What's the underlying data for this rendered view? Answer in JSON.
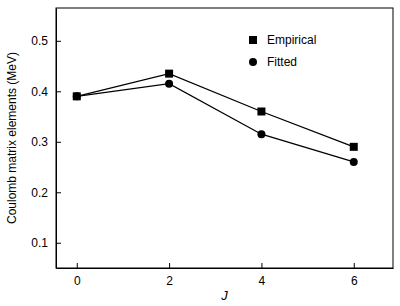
{
  "chart_data": {
    "type": "line",
    "x_label": "J",
    "y_label": "Coulomb matrix elements (MeV)",
    "x": [
      0,
      2,
      4,
      6
    ],
    "series": [
      {
        "name": "Empirical",
        "color": "#000000",
        "marker": "square",
        "values": [
          0.39,
          0.435,
          0.36,
          0.29
        ]
      },
      {
        "name": "Fitted",
        "color": "#000000",
        "marker": "circle",
        "values": [
          0.39,
          0.415,
          0.315,
          0.26
        ]
      }
    ],
    "xlim": [
      -0.45,
      6.85
    ],
    "xticks": [
      0,
      2,
      4,
      6
    ],
    "ylim": [
      0.05,
      0.565
    ],
    "yticks": [
      0.1,
      0.2,
      0.3,
      0.4,
      0.5
    ],
    "grid": false,
    "legend": "upper right"
  }
}
